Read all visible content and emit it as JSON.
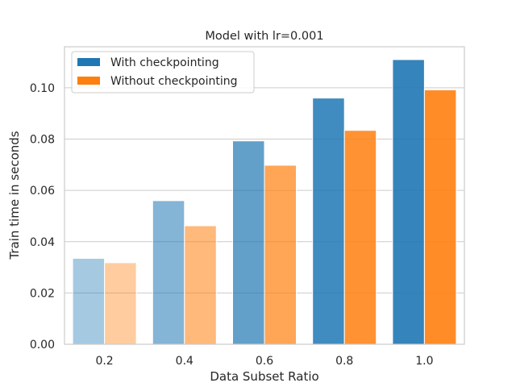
{
  "chart_data": {
    "type": "bar",
    "title": "Model with lr=0.001",
    "xlabel": "Data Subset Ratio",
    "ylabel": "Train time in seconds",
    "categories": [
      "0.2",
      "0.4",
      "0.6",
      "0.8",
      "1.0"
    ],
    "ylim": [
      0,
      0.116
    ],
    "yticks": [
      0.0,
      0.02,
      0.04,
      0.06,
      0.08,
      0.1
    ],
    "ytick_labels": [
      "0.00",
      "0.02",
      "0.04",
      "0.06",
      "0.08",
      "0.10"
    ],
    "grid": true,
    "legend_position": "top-left",
    "series": [
      {
        "name": "With checkpointing",
        "color": "#1f77b4",
        "values": [
          0.0335,
          0.056,
          0.0793,
          0.096,
          0.111
        ]
      },
      {
        "name": "Without checkpointing",
        "color": "#ff7f0e",
        "values": [
          0.0318,
          0.0462,
          0.0698,
          0.0834,
          0.0992
        ]
      }
    ],
    "category_opacity": [
      0.4,
      0.55,
      0.7,
      0.85,
      0.9
    ]
  }
}
